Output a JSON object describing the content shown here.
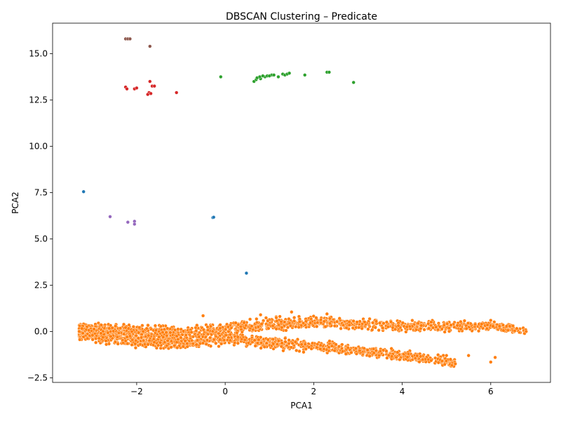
{
  "chart_data": {
    "type": "scatter",
    "title": "DBSCAN Clustering – Predicate",
    "xlabel": "PCA1",
    "ylabel": "PCA2",
    "xlim": [
      -3.9,
      7.35
    ],
    "ylim": [
      -2.75,
      16.65
    ],
    "xticks": [
      -2,
      0,
      2,
      4,
      6
    ],
    "xtick_labels": [
      "−2",
      "0",
      "2",
      "4",
      "6"
    ],
    "yticks": [
      -2.5,
      0.0,
      2.5,
      5.0,
      7.5,
      10.0,
      12.5,
      15.0
    ],
    "ytick_labels": [
      "−2.5",
      "0.0",
      "2.5",
      "5.0",
      "7.5",
      "10.0",
      "12.5",
      "15.0"
    ],
    "grid": false,
    "legend": "none",
    "series": [
      {
        "color": "#1f77b4",
        "points": [
          [
            -3.2,
            7.55
          ],
          [
            -0.28,
            6.15
          ],
          [
            -0.26,
            6.17
          ],
          [
            0.48,
            3.15
          ]
        ]
      },
      {
        "color": "#ff7f0e",
        "dense_band": true,
        "upper_band": [
          [
            -3.3,
            0.1
          ],
          [
            -2,
            0.0
          ],
          [
            -1,
            -0.1
          ],
          [
            0,
            0.1
          ],
          [
            1,
            0.4
          ],
          [
            2,
            0.5
          ],
          [
            3,
            0.4
          ],
          [
            4,
            0.3
          ],
          [
            5,
            0.3
          ],
          [
            6,
            0.3
          ],
          [
            6.8,
            0.0
          ]
        ],
        "lower_band": [
          [
            -3.3,
            -0.1
          ],
          [
            -2,
            -0.5
          ],
          [
            -1,
            -0.6
          ],
          [
            0,
            -0.4
          ],
          [
            1,
            -0.6
          ],
          [
            2,
            -0.8
          ],
          [
            3,
            -1.0
          ],
          [
            4,
            -1.3
          ],
          [
            5,
            -1.6
          ],
          [
            5.2,
            -1.75
          ]
        ],
        "points": [
          [
            -3.3,
            0.0
          ],
          [
            6.8,
            0.0
          ],
          [
            6.5,
            0.3
          ],
          [
            6.0,
            0.6
          ],
          [
            2.3,
            0.95
          ],
          [
            1.5,
            1.05
          ],
          [
            0.8,
            0.9
          ],
          [
            -0.5,
            0.85
          ],
          [
            5.0,
            -1.3
          ],
          [
            5.5,
            -1.3
          ],
          [
            6.0,
            -1.65
          ],
          [
            6.1,
            -1.4
          ],
          [
            4.9,
            -1.6
          ],
          [
            5.2,
            -1.75
          ],
          [
            -2.8,
            0.35
          ],
          [
            -3.0,
            -0.2
          ]
        ]
      },
      {
        "color": "#2ca02c",
        "points": [
          [
            -0.1,
            13.75
          ],
          [
            0.65,
            13.5
          ],
          [
            0.7,
            13.6
          ],
          [
            0.72,
            13.7
          ],
          [
            0.8,
            13.65
          ],
          [
            0.9,
            13.75
          ],
          [
            0.95,
            13.8
          ],
          [
            1.05,
            13.85
          ],
          [
            1.1,
            13.85
          ],
          [
            1.2,
            13.75
          ],
          [
            1.3,
            13.9
          ],
          [
            1.35,
            13.85
          ],
          [
            1.4,
            13.9
          ],
          [
            1.45,
            13.95
          ],
          [
            0.85,
            13.8
          ],
          [
            0.78,
            13.75
          ],
          [
            1.0,
            13.8
          ],
          [
            1.8,
            13.85
          ],
          [
            2.3,
            14.0
          ],
          [
            2.35,
            14.0
          ],
          [
            2.9,
            13.45
          ]
        ]
      },
      {
        "color": "#d62728",
        "points": [
          [
            -2.25,
            13.2
          ],
          [
            -2.22,
            13.1
          ],
          [
            -2.05,
            13.1
          ],
          [
            -2.0,
            13.15
          ],
          [
            -1.7,
            13.5
          ],
          [
            -1.65,
            13.25
          ],
          [
            -1.6,
            13.25
          ],
          [
            -1.72,
            12.9
          ],
          [
            -1.68,
            12.85
          ],
          [
            -1.75,
            12.8
          ],
          [
            -1.1,
            12.9
          ]
        ]
      },
      {
        "color": "#9467bd",
        "points": [
          [
            -2.6,
            6.2
          ],
          [
            -2.2,
            5.9
          ],
          [
            -2.05,
            5.95
          ],
          [
            -2.05,
            5.8
          ]
        ]
      },
      {
        "color": "#8c564b",
        "points": [
          [
            -2.25,
            15.8
          ],
          [
            -2.2,
            15.8
          ],
          [
            -2.15,
            15.8
          ],
          [
            -1.7,
            15.4
          ]
        ]
      }
    ]
  }
}
